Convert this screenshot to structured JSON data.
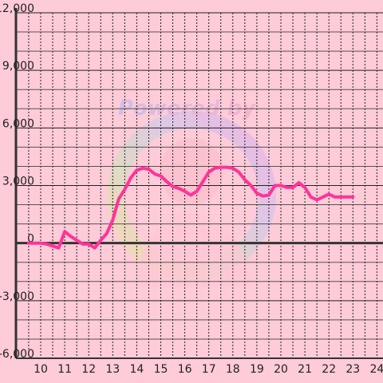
{
  "watermark": {
    "text": "Powered by",
    "colors": [
      "#a9b4f5",
      "#f5a0c4"
    ]
  },
  "colors": {
    "background": "#fecbd8",
    "line": "#ff3399",
    "axis": "#333333",
    "grid_major": "#222222",
    "grid_minor": "#555555"
  },
  "chart_data": {
    "type": "line",
    "title": "",
    "xlabel": "",
    "ylabel": "",
    "xlim": [
      9.5,
      24.3
    ],
    "ylim": [
      -6000,
      12000
    ],
    "x_ticks": [
      10,
      11,
      12,
      13,
      14,
      15,
      16,
      17,
      18,
      19,
      20,
      21,
      22,
      23,
      24
    ],
    "y_ticks": [
      12000,
      9000,
      6000,
      3000,
      0,
      -3000,
      -6000
    ],
    "y_tick_labels": [
      "12,000",
      "9,000",
      "6,000",
      "3,000",
      "0",
      "-3,000",
      "-6,000"
    ],
    "grid": true,
    "series": [
      {
        "x": [
          9.5,
          10.0,
          10.25,
          10.5,
          10.75,
          11.0,
          11.25,
          11.5,
          11.75,
          12.0,
          12.25,
          12.5,
          12.75,
          13.0,
          13.25,
          13.5,
          13.75,
          14.0,
          14.25,
          14.5,
          14.75,
          15.0,
          15.25,
          15.5,
          15.75,
          16.0,
          16.25,
          16.5,
          16.75,
          17.0,
          17.25,
          17.5,
          17.75,
          18.0,
          18.25,
          18.5,
          18.75,
          19.0,
          19.25,
          19.5,
          19.75,
          20.0,
          20.25,
          20.5,
          20.75,
          21.0,
          21.25,
          21.5,
          21.75,
          22.0,
          22.25,
          22.5,
          22.75,
          23.0
        ],
        "values": [
          0,
          0,
          -50,
          -150,
          -250,
          600,
          350,
          150,
          -50,
          -50,
          -250,
          150,
          500,
          1200,
          2300,
          2800,
          3400,
          3800,
          3900,
          3850,
          3600,
          3500,
          3200,
          2950,
          2850,
          2700,
          2500,
          2700,
          3200,
          3700,
          3900,
          3950,
          3950,
          3900,
          3700,
          3300,
          3000,
          2600,
          2450,
          2500,
          3000,
          3000,
          2900,
          2900,
          3150,
          2900,
          2400,
          2250,
          2400,
          2550,
          2400,
          2400,
          2400,
          2400
        ]
      }
    ]
  }
}
